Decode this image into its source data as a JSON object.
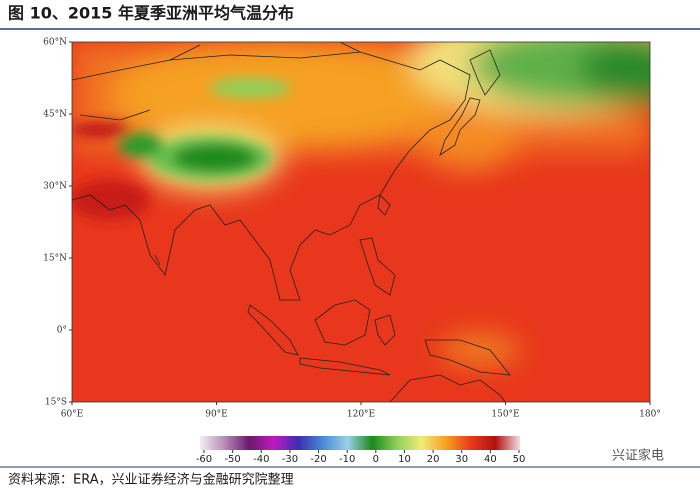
{
  "chart_data": {
    "type": "map",
    "title": "图 10、2015 年夏季亚洲平均气温分布",
    "xlim": [
      60,
      180
    ],
    "ylim": [
      -15,
      60
    ],
    "xticks": [
      {
        "value": 60,
        "label": "60°E"
      },
      {
        "value": 90,
        "label": "90°E"
      },
      {
        "value": 120,
        "label": "120°E"
      },
      {
        "value": 150,
        "label": "150°E"
      },
      {
        "value": 180,
        "label": "180°"
      }
    ],
    "yticks": [
      {
        "value": 60,
        "label": "60°N"
      },
      {
        "value": 45,
        "label": "45°N"
      },
      {
        "value": 30,
        "label": "30°N"
      },
      {
        "value": 15,
        "label": "15°N"
      },
      {
        "value": 0,
        "label": "0°"
      },
      {
        "value": -15,
        "label": "15°S"
      }
    ],
    "colorbar": {
      "lim": [
        -60,
        50
      ],
      "ticks": [
        -60,
        -50,
        -40,
        -30,
        -20,
        -10,
        0,
        10,
        20,
        30,
        40,
        50
      ],
      "colors": [
        "#f4eef4",
        "#b58bb5",
        "#6a1a6a",
        "#c01ac0",
        "#3a2fb0",
        "#4a8ad8",
        "#9ad0e8",
        "#1a8a1a",
        "#8fd05a",
        "#f2ea7a",
        "#f5a020",
        "#e83a1a",
        "#b01010",
        "#f0e0e0"
      ]
    },
    "source": "资料来源：ERA，兴业证券经济与金融研究院整理"
  },
  "watermark": "兴证家电"
}
